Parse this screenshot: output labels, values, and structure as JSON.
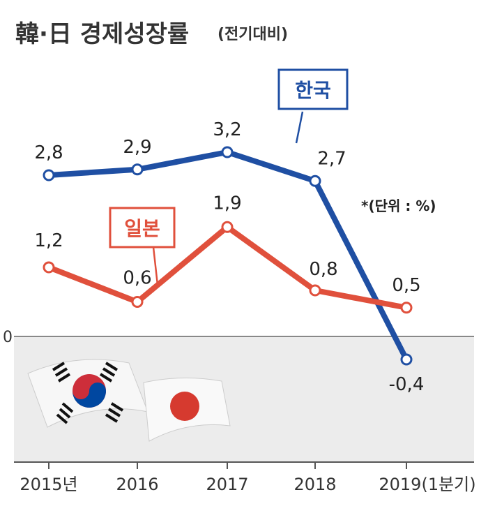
{
  "chart_data": {
    "type": "line",
    "title": "韓·日 경제성장률",
    "subtitle": "(전기대비)",
    "unit_note": "*(단위 : %)",
    "categories": [
      "2015년",
      "2016",
      "2017",
      "2018",
      "2019(1분기)"
    ],
    "zero_label": "0",
    "series": [
      {
        "name": "한국",
        "values": [
          2.8,
          2.9,
          3.2,
          2.7,
          -0.4
        ],
        "labels": [
          "2,8",
          "2,9",
          "3,2",
          "2,7",
          "-0,4"
        ],
        "color": "#1f4fa3"
      },
      {
        "name": "일본",
        "values": [
          1.2,
          0.6,
          1.9,
          0.8,
          0.5
        ],
        "labels": [
          "1,2",
          "0,6",
          "1,9",
          "0,8",
          "0,5"
        ],
        "color": "#e0503c"
      }
    ],
    "ylim": [
      -0.6,
      3.5
    ],
    "grid": false,
    "legend": "callouts"
  }
}
